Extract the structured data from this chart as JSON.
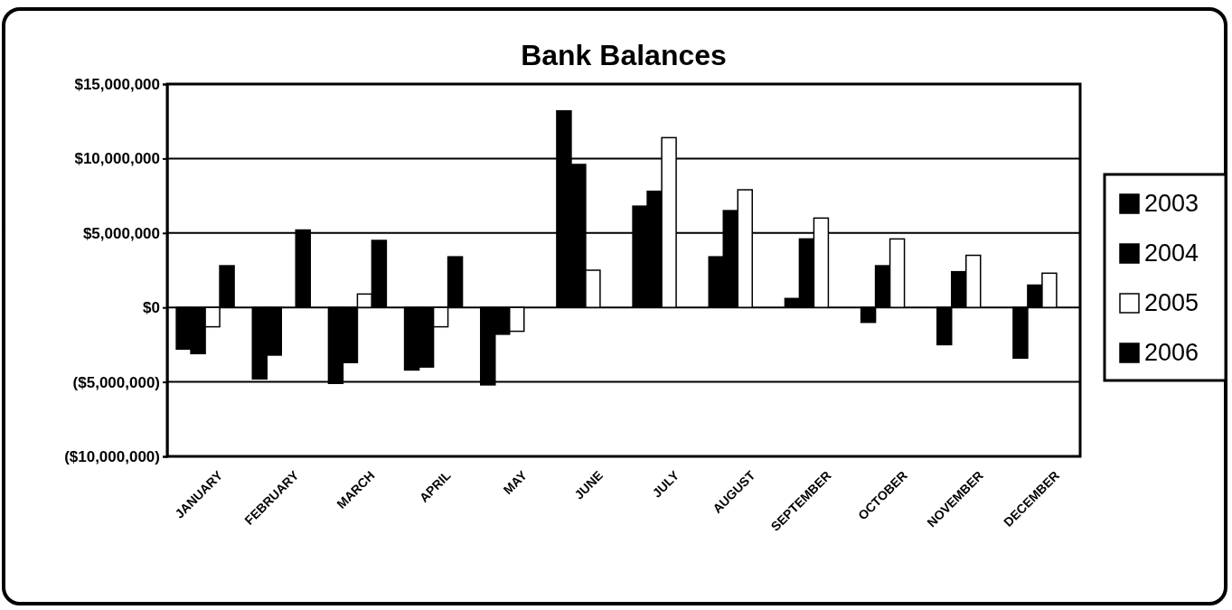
{
  "chart_data": {
    "type": "bar",
    "title": "Bank Balances",
    "categories": [
      "JANUARY",
      "FEBRUARY",
      "MARCH",
      "APRIL",
      "MAY",
      "JUNE",
      "JULY",
      "AUGUST",
      "SEPTEMBER",
      "OCTOBER",
      "NOVEMBER",
      "DECEMBER"
    ],
    "series": [
      {
        "name": "2003",
        "color": "#000000",
        "values": [
          -2800000,
          -4800000,
          -5100000,
          -4200000,
          -5200000,
          13200000,
          6800000,
          3400000,
          600000,
          -1000000,
          -2500000,
          -3400000
        ]
      },
      {
        "name": "2004",
        "color": "#000000",
        "values": [
          -3100000,
          -3200000,
          -3700000,
          -4000000,
          -1800000,
          9600000,
          7800000,
          6500000,
          4600000,
          2800000,
          2400000,
          1500000
        ]
      },
      {
        "name": "2005",
        "color": "#ffffff",
        "values": [
          -1300000,
          0,
          900000,
          -1300000,
          -1600000,
          2500000,
          11400000,
          7900000,
          6000000,
          4600000,
          3500000,
          2300000
        ]
      },
      {
        "name": "2006",
        "color": "#000000",
        "values": [
          2800000,
          5200000,
          4500000,
          3400000,
          null,
          null,
          null,
          null,
          null,
          null,
          null,
          null
        ]
      }
    ],
    "ylim": [
      -10000000,
      15000000
    ],
    "yticks": [
      {
        "value": -10000000,
        "label": "($10,000,000)"
      },
      {
        "value": -5000000,
        "label": "($5,000,000)"
      },
      {
        "value": 0,
        "label": "$0"
      },
      {
        "value": 5000000,
        "label": "$5,000,000"
      },
      {
        "value": 10000000,
        "label": "$10,000,000"
      },
      {
        "value": 15000000,
        "label": "$15,000,000"
      }
    ],
    "grid": "y",
    "legend": "right"
  }
}
